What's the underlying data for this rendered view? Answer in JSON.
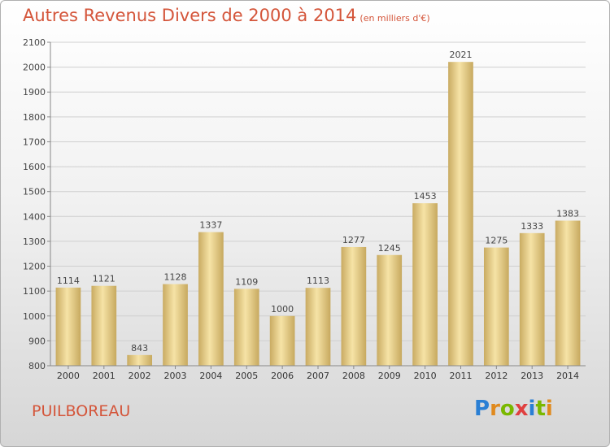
{
  "title": "Autres Revenus Divers de 2000 à 2014",
  "subtitle": "(en milliers d'€)",
  "commune": "PUILBOREAU",
  "logo": {
    "letters": [
      "P",
      "r",
      "o",
      "x",
      "i",
      "t",
      "i"
    ],
    "colors": [
      "#2a7fd4",
      "#e08a1e",
      "#7ab800",
      "#e04040",
      "#2a7fd4",
      "#7ab800",
      "#e08a1e"
    ]
  },
  "colors": {
    "bar_light": "#f6e3a6",
    "bar_dark": "#c9ab62",
    "accent": "#d4553a"
  },
  "chart_data": {
    "type": "bar",
    "categories": [
      "2000",
      "2001",
      "2002",
      "2003",
      "2004",
      "2005",
      "2006",
      "2007",
      "2008",
      "2009",
      "2010",
      "2011",
      "2012",
      "2013",
      "2014"
    ],
    "values": [
      1114,
      1121,
      843,
      1128,
      1337,
      1109,
      1000,
      1113,
      1277,
      1245,
      1453,
      2021,
      1275,
      1333,
      1383
    ],
    "ylim": [
      800,
      2100
    ],
    "yticks": [
      800,
      900,
      1000,
      1100,
      1200,
      1300,
      1400,
      1500,
      1600,
      1700,
      1800,
      1900,
      2000,
      2100
    ],
    "grid": true
  }
}
